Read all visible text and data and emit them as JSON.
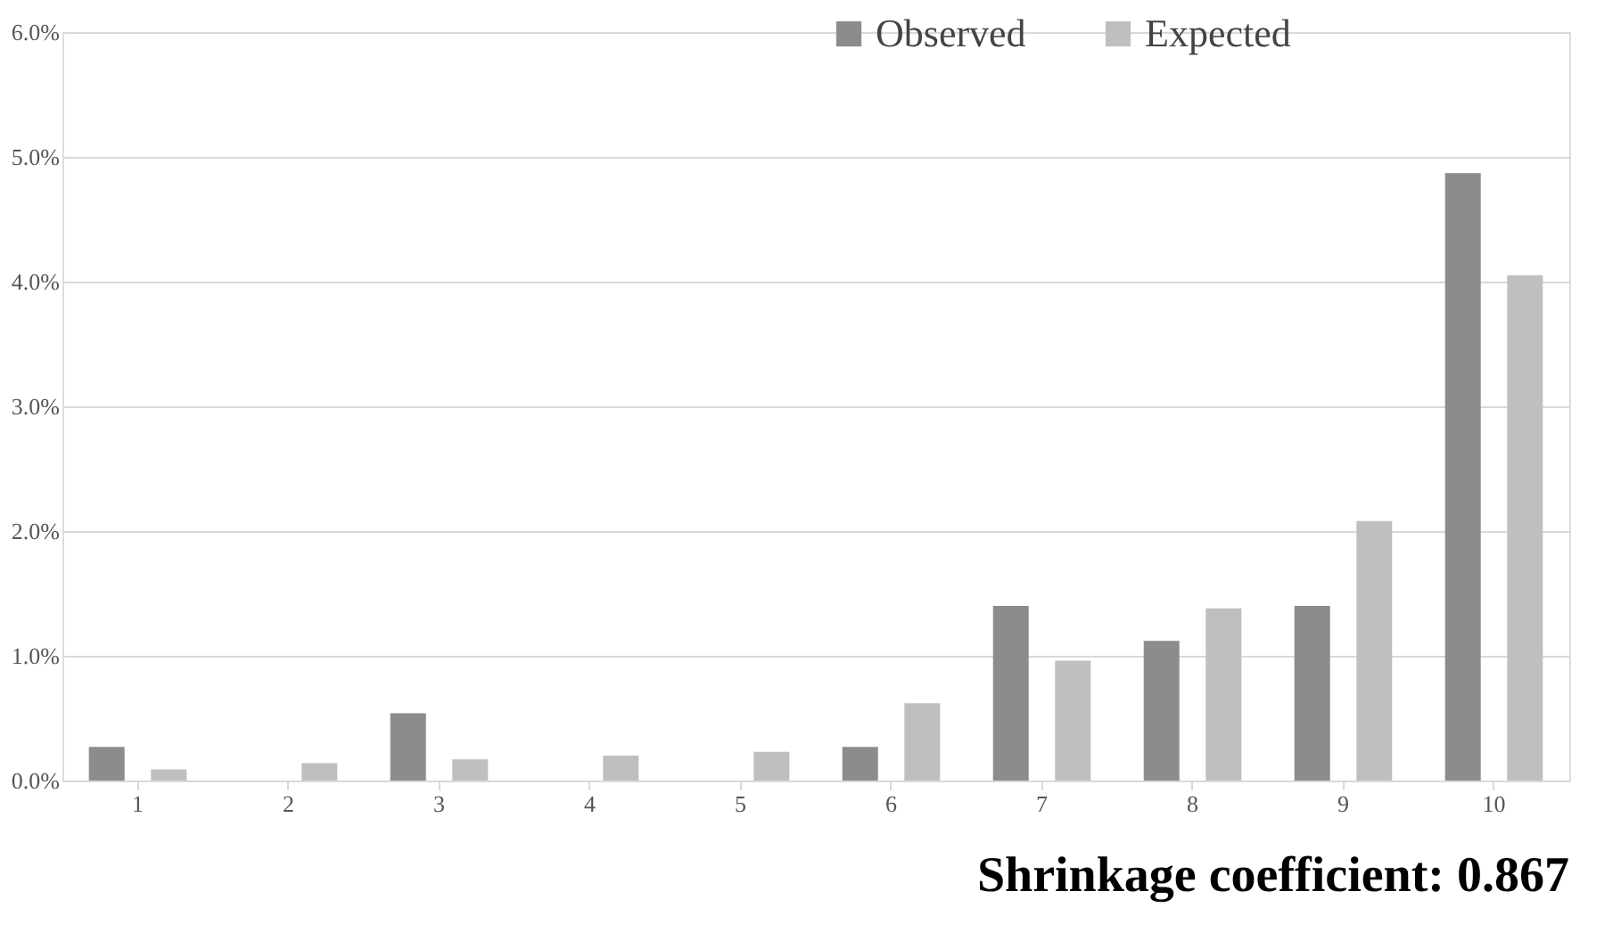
{
  "chart_data": {
    "type": "bar",
    "categories": [
      "1",
      "2",
      "3",
      "4",
      "5",
      "6",
      "7",
      "8",
      "9",
      "10"
    ],
    "series": [
      {
        "name": "Observed",
        "color": "#8c8c8c",
        "values": [
          0.27,
          0,
          0.54,
          0,
          0,
          0.27,
          1.4,
          1.12,
          1.4,
          4.87
        ]
      },
      {
        "name": "Expected",
        "color": "#bfbfbf",
        "values": [
          0.09,
          0.14,
          0.17,
          0.2,
          0.23,
          0.62,
          0.96,
          1.38,
          2.08,
          4.05
        ]
      }
    ],
    "ylim": [
      0,
      6
    ],
    "yticks": [
      {
        "value": 0,
        "label": "0.0%"
      },
      {
        "value": 1,
        "label": "1.0%"
      },
      {
        "value": 2,
        "label": "2.0%"
      },
      {
        "value": 3,
        "label": "3.0%"
      },
      {
        "value": 4,
        "label": "4.0%"
      },
      {
        "value": 5,
        "label": "5.0%"
      },
      {
        "value": 6,
        "label": "6.0%"
      }
    ],
    "grid": "y",
    "legend": "top right",
    "annotations": [
      "Shrinkage coefficient: 0.867"
    ]
  }
}
